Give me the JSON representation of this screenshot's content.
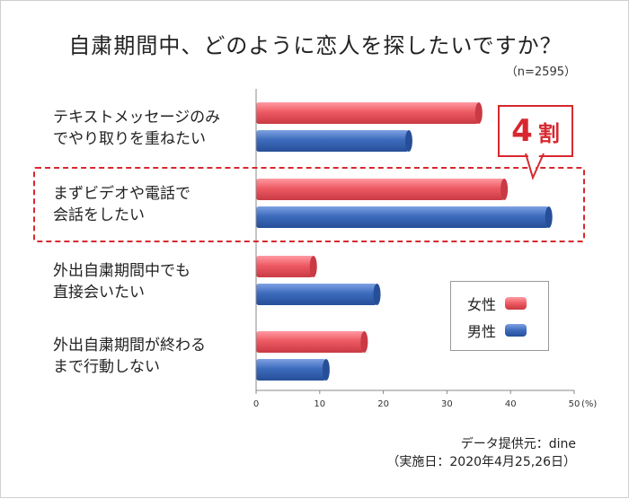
{
  "header": {
    "title": "自粛期間中、どのように恋人を探したいですか？",
    "sample": "（n=2595）"
  },
  "callout": {
    "number": "4",
    "unit": "割"
  },
  "legend": {
    "female": "女性",
    "male": "男性"
  },
  "source": {
    "line1": "データ提供元：dine",
    "line2": "（実施日：2020年4月25,26日）"
  },
  "colors": {
    "female": "#ee5a63",
    "male": "#3d6bbd",
    "accent": "#d7282f"
  },
  "chart_data": {
    "type": "bar",
    "orientation": "horizontal",
    "title": "自粛期間中、どのように恋人を探したいですか？",
    "categories": [
      [
        "テキストメッセージのみ",
        "でやり取りを重ねたい"
      ],
      [
        "まずビデオや電話で",
        "会話をしたい"
      ],
      [
        "外出自粛期間中でも",
        "直接会いたい"
      ],
      [
        "外出自粛期間が終わる",
        "まで行動しない"
      ]
    ],
    "series": [
      {
        "name": "女性",
        "values": [
          35,
          39,
          9,
          17
        ]
      },
      {
        "name": "男性",
        "values": [
          24,
          46,
          19,
          11
        ]
      }
    ],
    "xlim": [
      0,
      50
    ],
    "xticks": [
      "0",
      "10",
      "20",
      "30",
      "40",
      "50"
    ],
    "xunit": "(%)"
  }
}
